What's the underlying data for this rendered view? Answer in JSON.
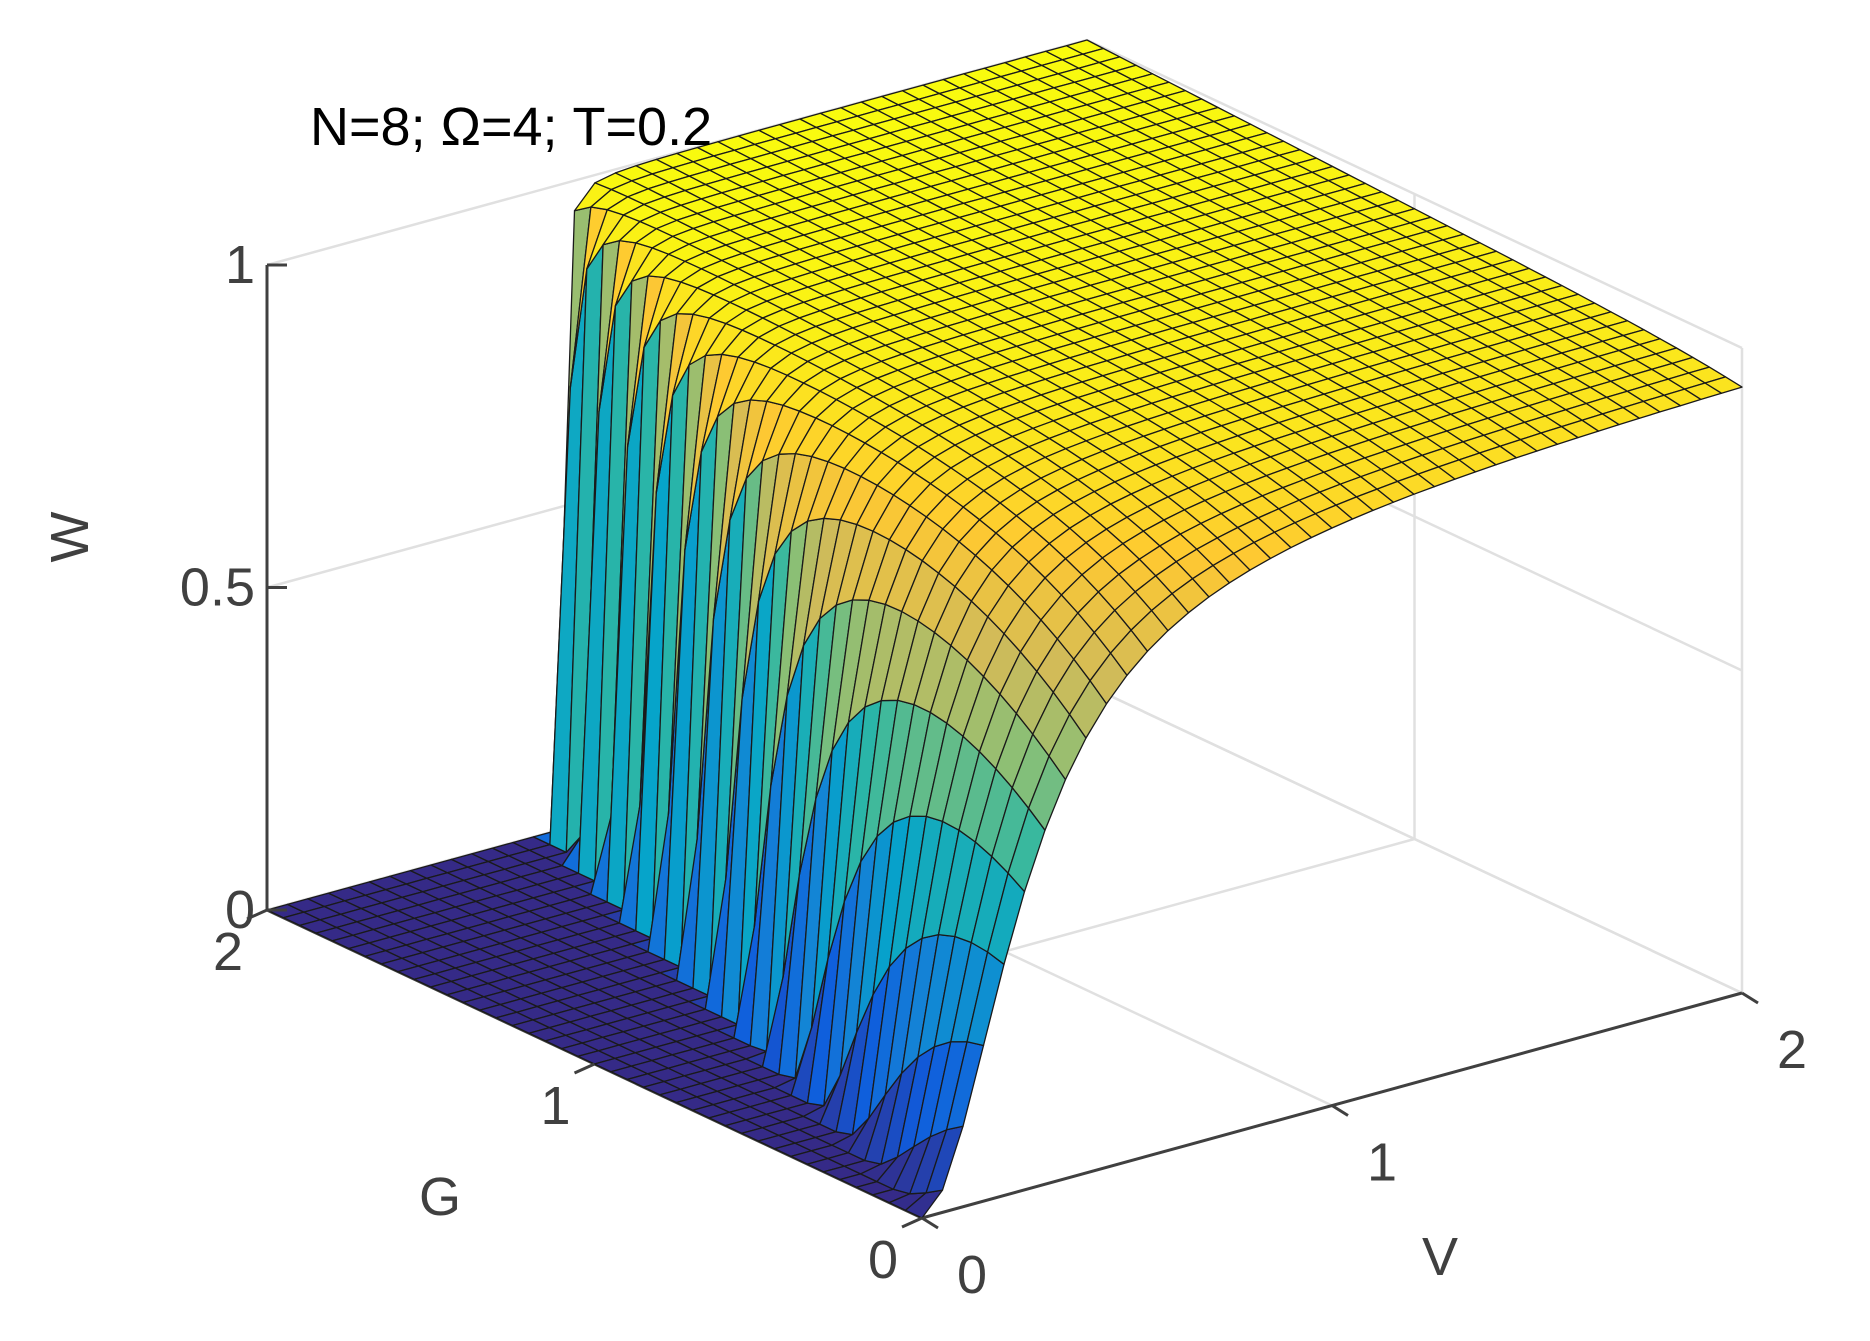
{
  "chart_data": {
    "type": "surface",
    "annotation": "N=8; Ω=4; T=0.2",
    "xlabel": "V",
    "ylabel": "G",
    "zlabel": "W",
    "xlim": [
      0,
      2
    ],
    "ylim": [
      0,
      2
    ],
    "zlim": [
      0,
      1
    ],
    "xticks": [
      "0",
      "1",
      "2"
    ],
    "yticks": [
      "0",
      "1",
      "2"
    ],
    "zticks": [
      "0",
      "0.5",
      "1"
    ],
    "grid": true,
    "colormap": "parula",
    "grid_resolution": [
      41,
      41
    ],
    "surface_description": "W(V,G) is ~0 for V below a threshold V0(G) and rises steeply toward ~1 above it; threshold V0 ≈ 0.35*G; transition is sharp at large G and broad (width ~0.5) at G≈0",
    "sample_profile_G0": {
      "V": [
        0,
        0.25,
        0.5,
        0.75,
        1.0,
        1.25,
        1.5,
        1.75,
        2.0
      ],
      "W": [
        0.0,
        0.04,
        0.15,
        0.37,
        0.62,
        0.8,
        0.9,
        0.94,
        0.95
      ]
    },
    "sample_profile_G2": {
      "V": [
        0,
        0.5,
        0.65,
        0.7,
        0.75,
        0.8,
        1.0,
        1.5,
        2.0
      ],
      "W": [
        0.0,
        0.0,
        0.1,
        0.4,
        0.8,
        0.97,
        1.0,
        1.0,
        1.0
      ]
    },
    "colors": {
      "parula": [
        "#352a87",
        "#0f5cdd",
        "#1481d6",
        "#06a4ca",
        "#2eb7a4",
        "#87bf77",
        "#d1bb59",
        "#fec832",
        "#f9fb0e"
      ],
      "edge": "#1a1a1a",
      "axis": "#404040",
      "gridline": "#e0e0e0"
    }
  }
}
